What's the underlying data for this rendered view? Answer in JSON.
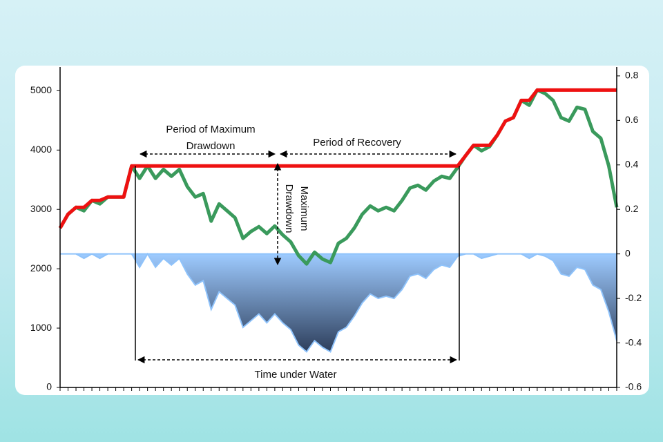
{
  "chart_data": {
    "type": "line",
    "categories": [
      null,
      null,
      null,
      null,
      null,
      null,
      null,
      null,
      null,
      null,
      null,
      null,
      null,
      null,
      null,
      null,
      null,
      null,
      null,
      null,
      null,
      null,
      null,
      null,
      null,
      null,
      null,
      null,
      null,
      null,
      null,
      null,
      null,
      null,
      null,
      null,
      null,
      null,
      null,
      null,
      null,
      null,
      null,
      null,
      null,
      null,
      null,
      null,
      null,
      null,
      null,
      null,
      null,
      null,
      null,
      null,
      null,
      null,
      null,
      null,
      null,
      null,
      null,
      null,
      null,
      null,
      null,
      null,
      null,
      null,
      null
    ],
    "series": [
      {
        "color": "#3a9a5c",
        "values": [
          2686,
          2919,
          3035,
          2977,
          3151,
          3093,
          3209,
          3209,
          3209,
          3733,
          3523,
          3733,
          3523,
          3674,
          3558,
          3674,
          3384,
          3209,
          3267,
          2802,
          3093,
          2977,
          2860,
          2512,
          2628,
          2709,
          2593,
          2721,
          2570,
          2453,
          2221,
          2081,
          2279,
          2163,
          2105,
          2430,
          2512,
          2686,
          2919,
          3058,
          2977,
          3035,
          2977,
          3151,
          3360,
          3407,
          3326,
          3477,
          3558,
          3523,
          3709,
          3907,
          4081,
          3988,
          4058,
          4256,
          4488,
          4547,
          4837,
          4756,
          5012,
          4953,
          4837,
          4547,
          4488,
          4721,
          4686,
          4314,
          4198,
          3733,
          3035
        ]
      },
      {
        "color": "#ee1111",
        "values": [
          2686,
          2919,
          3035,
          3035,
          3151,
          3151,
          3209,
          3209,
          3209,
          3733,
          3733,
          3733,
          3733,
          3733,
          3733,
          3733,
          3733,
          3733,
          3733,
          3733,
          3733,
          3733,
          3733,
          3733,
          3733,
          3733,
          3733,
          3733,
          3733,
          3733,
          3733,
          3733,
          3733,
          3733,
          3733,
          3733,
          3733,
          3733,
          3733,
          3733,
          3733,
          3733,
          3733,
          3733,
          3733,
          3733,
          3733,
          3733,
          3733,
          3733,
          3733,
          3907,
          4081,
          4081,
          4081,
          4256,
          4488,
          4547,
          4837,
          4837,
          5012,
          5012,
          5012,
          5012,
          5012,
          5012,
          5012,
          5012,
          5012,
          5012,
          5012
        ]
      },
      {
        "color": "#8fc3fb",
        "axis": "y2",
        "values": [
          0,
          0,
          0,
          -0.02,
          0,
          -0.02,
          0,
          0,
          0,
          0,
          -0.06,
          0,
          -0.06,
          -0.02,
          -0.05,
          -0.02,
          -0.09,
          -0.14,
          -0.12,
          -0.25,
          -0.17,
          -0.2,
          -0.23,
          -0.33,
          -0.3,
          -0.27,
          -0.31,
          -0.27,
          -0.31,
          -0.34,
          -0.41,
          -0.44,
          -0.39,
          -0.42,
          -0.44,
          -0.35,
          -0.33,
          -0.28,
          -0.22,
          -0.18,
          -0.2,
          -0.19,
          -0.2,
          -0.16,
          -0.1,
          -0.09,
          -0.11,
          -0.07,
          -0.05,
          -0.06,
          -0.01,
          0,
          0,
          -0.02,
          -0.01,
          0,
          0,
          0,
          0,
          -0.02,
          0,
          -0.01,
          -0.03,
          -0.09,
          -0.1,
          -0.06,
          -0.07,
          -0.14,
          -0.16,
          -0.26,
          -0.39
        ]
      }
    ],
    "ylim": [
      0,
      5400
    ],
    "yticks": [
      0,
      1000,
      2000,
      3000,
      4000,
      5000
    ],
    "y2lim": [
      -0.6,
      0.84
    ],
    "y2ticks": [
      -0.6,
      -0.4,
      -0.2,
      0,
      0.2,
      0.4,
      0.6,
      0.8
    ],
    "annotations": [
      "Period of Maximum",
      "Drawdown",
      "Period of Recovery",
      "Maximum",
      "Drawdown",
      "Time under Water"
    ]
  }
}
